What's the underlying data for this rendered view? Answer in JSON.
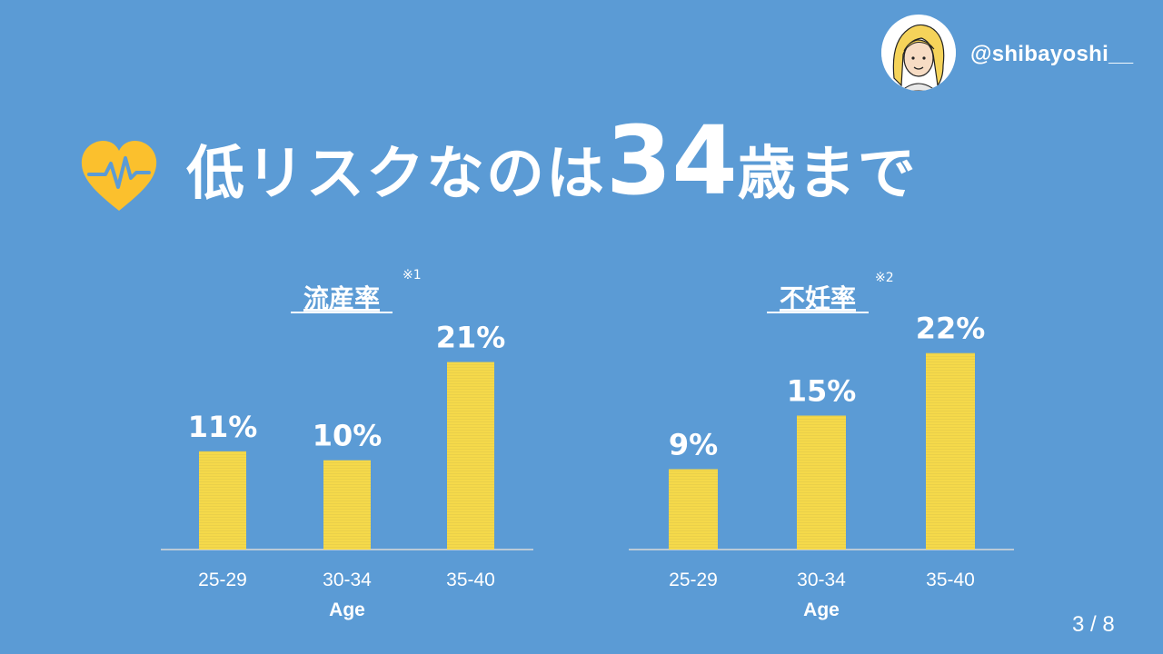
{
  "header": {
    "handle": "@shibayoshi__",
    "title_prefix": "低リスクなのは",
    "title_number": "34",
    "title_suffix": "歳まで"
  },
  "icons": {
    "heart": "heartbeat-heart-icon",
    "avatar": "user-avatar"
  },
  "page": {
    "indicator": "3 / 8"
  },
  "colors": {
    "background": "#5b9bd5",
    "bar": "#f5d94a",
    "heart": "#fbc02d",
    "text": "#ffffff"
  },
  "chart_data": [
    {
      "type": "bar",
      "title": "流産率",
      "note": "※1",
      "categories": [
        "25-29",
        "30-34",
        "35-40"
      ],
      "values": [
        11,
        10,
        21
      ],
      "value_labels": [
        "11%",
        "10%",
        "21%"
      ],
      "xlabel": "Age",
      "ylabel": "",
      "ylim": [
        0,
        25
      ],
      "grid": false
    },
    {
      "type": "bar",
      "title": "不妊率",
      "note": "※2",
      "categories": [
        "25-29",
        "30-34",
        "35-40"
      ],
      "values": [
        9,
        15,
        22
      ],
      "value_labels": [
        "9%",
        "15%",
        "22%"
      ],
      "xlabel": "Age",
      "ylabel": "",
      "ylim": [
        0,
        25
      ],
      "grid": false
    }
  ]
}
